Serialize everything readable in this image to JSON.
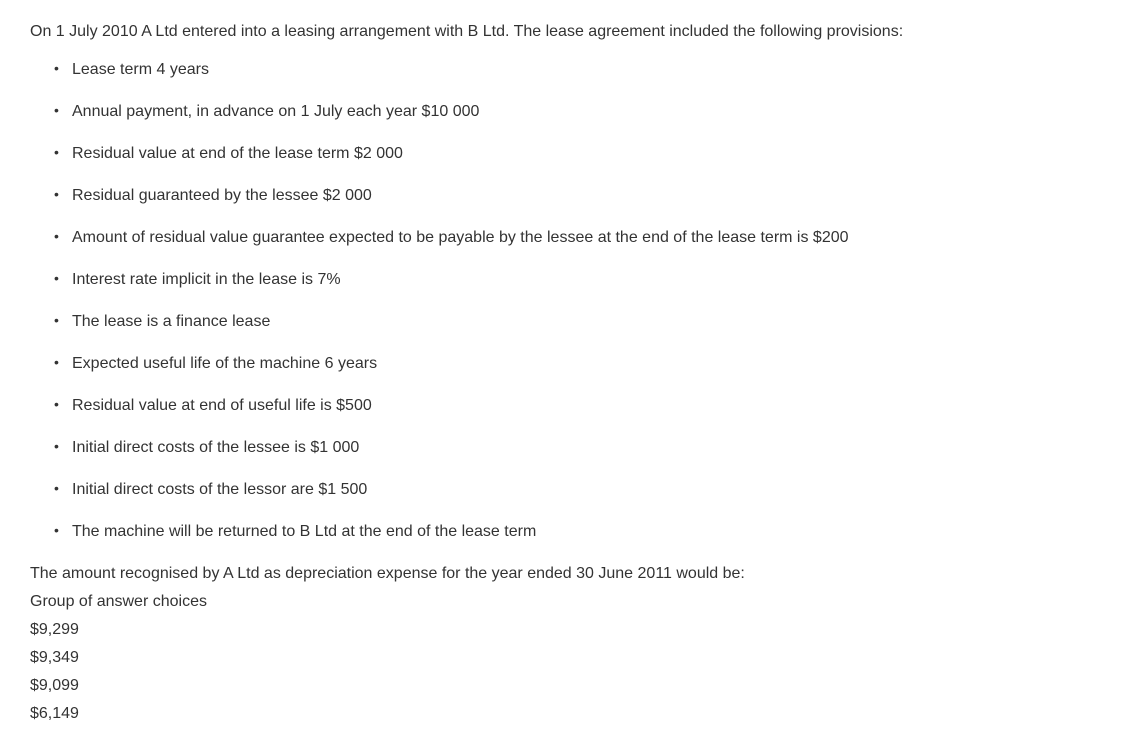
{
  "intro": "On 1 July 2010 A Ltd entered into a leasing arrangement with B Ltd. The lease agreement included the following provisions:",
  "bullets": [
    "Lease term 4 years",
    "Annual payment, in advance on 1 July each year $10 000",
    "Residual value at end of the lease term $2 000",
    "Residual guaranteed by the lessee $2 000",
    "Amount of residual value guarantee expected to be payable by the lessee at the end of the lease term is $200",
    "Interest rate implicit in the lease is 7%",
    "The lease is a finance lease",
    "Expected useful life of the machine 6 years",
    "Residual value at end of useful life is $500",
    "Initial direct costs of the lessee is $1 000",
    "Initial direct costs of the lessor are $1 500",
    "The machine will be returned to B Ltd at the end of the lease term"
  ],
  "question": "The amount recognised by A Ltd as depreciation expense for the year ended 30 June 2011 would be:",
  "group_label": "Group of answer choices",
  "choices": [
    "$9,299",
    "$9,349",
    "$9,099",
    "$6,149"
  ],
  "colors": {
    "background": "#ffffff",
    "text": "#333333"
  },
  "typography": {
    "fontsize_pt": 12,
    "font_family": "Helvetica/Arial"
  }
}
